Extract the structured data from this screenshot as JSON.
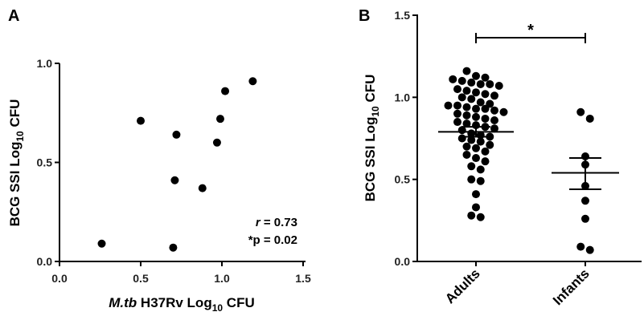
{
  "chart_data": [
    {
      "panel": "A",
      "type": "scatter",
      "xlabel": {
        "italic": "M.tb",
        "text": " H37Rv Log",
        "sub": "10",
        "tail": " CFU"
      },
      "ylabel": {
        "text": "BCG SSI Log",
        "sub": "10",
        "tail": " CFU"
      },
      "xlim": [
        0,
        1.5
      ],
      "ylim": [
        0,
        1.0
      ],
      "x_ticks": [
        "0.0",
        "0.5",
        "1.0",
        "1.5"
      ],
      "y_ticks": [
        "0.0",
        "0.5",
        "1.0"
      ],
      "points": [
        {
          "x": 0.26,
          "y": 0.09
        },
        {
          "x": 0.5,
          "y": 0.71
        },
        {
          "x": 0.7,
          "y": 0.07
        },
        {
          "x": 0.71,
          "y": 0.41
        },
        {
          "x": 0.72,
          "y": 0.64
        },
        {
          "x": 0.88,
          "y": 0.37
        },
        {
          "x": 0.97,
          "y": 0.6
        },
        {
          "x": 0.99,
          "y": 0.72
        },
        {
          "x": 1.02,
          "y": 0.86
        },
        {
          "x": 1.19,
          "y": 0.91
        }
      ],
      "annotation": {
        "r_label": "r",
        "r_value": " = 0.73",
        "p_text": "*p = 0.02"
      }
    },
    {
      "panel": "B",
      "type": "scatter",
      "ylabel": {
        "text": "BCG SSI Log",
        "sub": "10",
        "tail": " CFU"
      },
      "ylim": [
        0,
        1.5
      ],
      "y_ticks": [
        "0.0",
        "0.5",
        "1.0",
        "1.5"
      ],
      "categories": [
        "Adults",
        "Infants"
      ],
      "series": [
        {
          "category": "Adults",
          "mean": 0.79,
          "sem_low": 0.76,
          "sem_high": 0.82,
          "values": [
            1.16,
            1.13,
            1.12,
            1.11,
            1.1,
            1.09,
            1.08,
            1.08,
            1.07,
            1.05,
            1.04,
            1.03,
            1.02,
            1.01,
            1.0,
            0.99,
            0.97,
            0.96,
            0.95,
            0.95,
            0.94,
            0.93,
            0.93,
            0.92,
            0.91,
            0.9,
            0.89,
            0.88,
            0.87,
            0.86,
            0.85,
            0.84,
            0.83,
            0.82,
            0.81,
            0.8,
            0.78,
            0.77,
            0.76,
            0.75,
            0.74,
            0.73,
            0.71,
            0.7,
            0.69,
            0.67,
            0.65,
            0.63,
            0.61,
            0.58,
            0.56,
            0.5,
            0.49,
            0.41,
            0.33,
            0.28,
            0.27
          ]
        },
        {
          "category": "Infants",
          "mean": 0.54,
          "sem_low": 0.44,
          "sem_high": 0.63,
          "values": [
            0.91,
            0.87,
            0.64,
            0.59,
            0.46,
            0.37,
            0.26,
            0.09,
            0.07
          ]
        }
      ],
      "significance": "*"
    }
  ]
}
